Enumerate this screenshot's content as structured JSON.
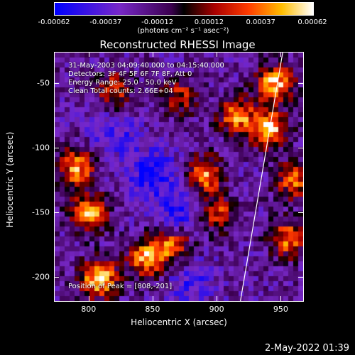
{
  "chart_data": {
    "type": "heatmap",
    "title": "Reconstructed RHESSI Image",
    "xlabel": "Heliocentric X (arcsec)",
    "ylabel": "Heliocentric Y (arcsec)",
    "xlim": [
      773,
      967
    ],
    "ylim": [
      -218,
      -26
    ],
    "x_ticks": [
      800,
      850,
      900,
      950
    ],
    "y_ticks": [
      -50,
      -100,
      -150,
      -200
    ],
    "colorbar": {
      "ticks": [
        "-0.00062",
        "-0.00037",
        "-0.00012",
        "0.00012",
        "0.00037",
        "0.00062"
      ],
      "unit": "(photons cm⁻² s⁻¹ asec⁻²)",
      "range": [
        -0.00062,
        0.00062
      ]
    },
    "annotations": [
      "31-May-2003 04:09:40.000 to 04:15:40.000",
      "Detectors: 3F 4F 5F 6F 7F 8F, Att 0",
      "Energy Range: 25.0 - 50.0 keV",
      "Clean    Total counts: 2.66E+04"
    ],
    "peak_label": "Position of Peak = [808,-201]",
    "peak": [
      808,
      -201
    ],
    "bright_regions": [
      {
        "x": 808,
        "y": -201,
        "v": 1.0
      },
      {
        "x": 800,
        "y": -150,
        "v": 0.85
      },
      {
        "x": 790,
        "y": -115,
        "v": 0.8
      },
      {
        "x": 845,
        "y": -185,
        "v": 0.85
      },
      {
        "x": 865,
        "y": -175,
        "v": 0.7
      },
      {
        "x": 890,
        "y": -120,
        "v": 0.8
      },
      {
        "x": 900,
        "y": -150,
        "v": 0.6
      },
      {
        "x": 915,
        "y": -75,
        "v": 0.75
      },
      {
        "x": 940,
        "y": -85,
        "v": 0.95
      },
      {
        "x": 945,
        "y": -50,
        "v": 0.9
      },
      {
        "x": 955,
        "y": -170,
        "v": 0.7
      },
      {
        "x": 960,
        "y": -125,
        "v": 0.65
      },
      {
        "x": 820,
        "y": -55,
        "v": 0.55
      },
      {
        "x": 870,
        "y": -60,
        "v": 0.5
      }
    ],
    "dark_regions": [
      {
        "x": 850,
        "y": -120,
        "v": -0.8
      },
      {
        "x": 870,
        "y": -150,
        "v": -0.6
      },
      {
        "x": 820,
        "y": -90,
        "v": -0.5
      },
      {
        "x": 880,
        "y": -205,
        "v": -0.5
      }
    ],
    "limb_line": [
      [
        951,
        -26
      ],
      [
        918,
        -218
      ]
    ],
    "colors": {
      "background": "#000000",
      "text": "#ffffff",
      "limb": "#ffffff"
    }
  },
  "footer": {
    "timestamp": "2-May-2022 01:39"
  }
}
